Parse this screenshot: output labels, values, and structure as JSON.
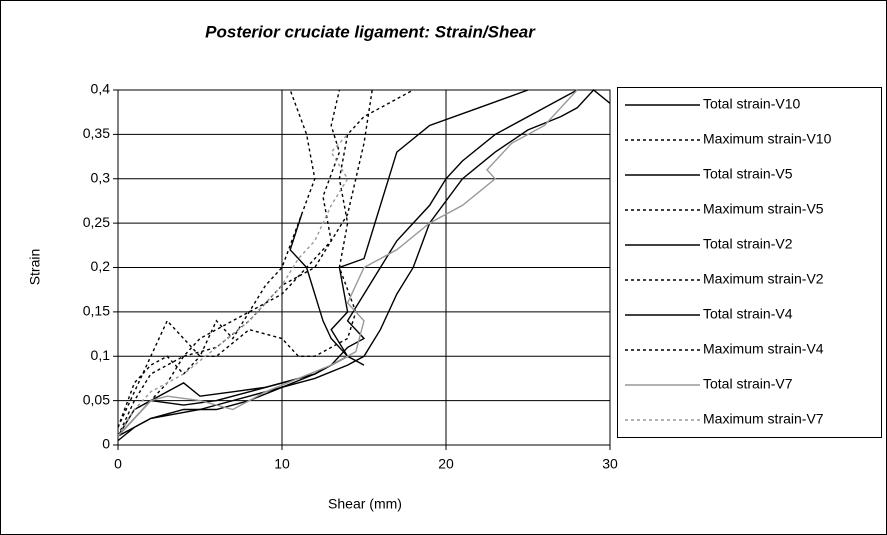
{
  "chart_data": {
    "type": "line",
    "title": "Posterior cruciate ligament: Strain/Shear",
    "xlabel": "Shear (mm)",
    "ylabel": "Strain",
    "xlim": [
      0,
      30
    ],
    "xticks": [
      0,
      10,
      20,
      30
    ],
    "ylim": [
      0,
      0.4
    ],
    "yticks": [
      0,
      {
        "value": 0.05,
        "label": "0,05"
      },
      {
        "value": 0.1,
        "label": "0,1"
      },
      {
        "value": 0.15,
        "label": "0,15"
      },
      {
        "value": 0.2,
        "label": "0,2"
      },
      {
        "value": 0.25,
        "label": "0,25"
      },
      {
        "value": 0.3,
        "label": "0,3"
      },
      {
        "value": 0.35,
        "label": "0,35"
      },
      {
        "value": 0.4,
        "label": "0,4"
      }
    ],
    "grid": true,
    "legend": "right",
    "series": [
      {
        "name": "Total strain-V10",
        "color": "#000000",
        "line_style": "solid",
        "x": [
          0,
          2,
          5,
          8,
          10,
          12,
          14,
          15,
          16,
          17,
          18,
          19,
          21,
          23,
          25,
          27,
          28,
          29,
          30
        ],
        "values": [
          0.01,
          0.03,
          0.04,
          0.055,
          0.065,
          0.075,
          0.09,
          0.1,
          0.13,
          0.17,
          0.2,
          0.25,
          0.3,
          0.33,
          0.355,
          0.37,
          0.38,
          0.4,
          0.385
        ]
      },
      {
        "name": "Maximum strain-V10",
        "color": "#000000",
        "line_style": "dotted",
        "x": [
          0,
          1,
          2,
          3,
          4,
          5,
          6,
          7,
          8,
          9,
          10,
          11,
          12,
          11.5,
          10.5
        ],
        "values": [
          0.02,
          0.06,
          0.1,
          0.14,
          0.12,
          0.1,
          0.14,
          0.12,
          0.15,
          0.18,
          0.2,
          0.25,
          0.3,
          0.35,
          0.4
        ]
      },
      {
        "name": "Total strain-V5",
        "color": "#000000",
        "line_style": "solid",
        "x": [
          0,
          1,
          2,
          3,
          4,
          5,
          7,
          9,
          10,
          12,
          14,
          15,
          14,
          13,
          12.5,
          11.5,
          10.5,
          11.2
        ],
        "values": [
          0.01,
          0.03,
          0.05,
          0.06,
          0.07,
          0.055,
          0.06,
          0.065,
          0.07,
          0.08,
          0.1,
          0.09,
          0.1,
          0.12,
          0.14,
          0.2,
          0.22,
          0.26
        ]
      },
      {
        "name": "Maximum strain-V5",
        "color": "#000000",
        "line_style": "dotted",
        "x": [
          0,
          1,
          2,
          3,
          4,
          5,
          6,
          8,
          10,
          11,
          12,
          14,
          14.5,
          13.5,
          14,
          13.5,
          14,
          15,
          16,
          18
        ],
        "values": [
          0.02,
          0.07,
          0.09,
          0.1,
          0.08,
          0.1,
          0.1,
          0.13,
          0.12,
          0.1,
          0.1,
          0.12,
          0.15,
          0.2,
          0.25,
          0.3,
          0.35,
          0.37,
          0.38,
          0.4
        ]
      },
      {
        "name": "Total strain-V2",
        "color": "#000000",
        "line_style": "solid",
        "x": [
          0,
          1,
          2,
          4,
          6,
          8,
          10,
          12,
          14,
          13,
          14,
          13.5,
          15,
          17,
          19,
          22,
          25
        ],
        "values": [
          0.01,
          0.04,
          0.05,
          0.045,
          0.05,
          0.06,
          0.07,
          0.08,
          0.1,
          0.13,
          0.15,
          0.2,
          0.21,
          0.33,
          0.36,
          0.38,
          0.4
        ]
      },
      {
        "name": "Maximum strain-V2",
        "color": "#000000",
        "line_style": "dotted",
        "x": [
          0,
          1,
          2,
          3,
          4,
          6,
          8,
          9,
          10,
          12,
          13,
          12.5,
          13.5,
          13,
          13.5
        ],
        "values": [
          0.01,
          0.05,
          0.08,
          0.09,
          0.1,
          0.11,
          0.14,
          0.16,
          0.18,
          0.2,
          0.23,
          0.28,
          0.33,
          0.36,
          0.4
        ]
      },
      {
        "name": "Total strain-V4",
        "color": "#000000",
        "line_style": "solid",
        "x": [
          0,
          1,
          2,
          4,
          6,
          8,
          10,
          12,
          13,
          14,
          15,
          14,
          15,
          16,
          17,
          18,
          19,
          20,
          21,
          23,
          26,
          28
        ],
        "values": [
          0.005,
          0.02,
          0.03,
          0.04,
          0.04,
          0.05,
          0.065,
          0.08,
          0.09,
          0.11,
          0.12,
          0.14,
          0.17,
          0.2,
          0.23,
          0.25,
          0.27,
          0.3,
          0.32,
          0.35,
          0.38,
          0.4
        ]
      },
      {
        "name": "Maximum strain-V4",
        "color": "#000000",
        "line_style": "dotted",
        "x": [
          0,
          1,
          2,
          3,
          4,
          5,
          6,
          8,
          10,
          11,
          12,
          13,
          14,
          14.5,
          15,
          15.5
        ],
        "values": [
          0.01,
          0.04,
          0.05,
          0.07,
          0.1,
          0.12,
          0.13,
          0.15,
          0.17,
          0.19,
          0.21,
          0.23,
          0.26,
          0.3,
          0.34,
          0.4
        ]
      },
      {
        "name": "Total strain-V7",
        "color": "#999999",
        "line_style": "solid",
        "x": [
          0,
          1,
          2,
          3,
          5,
          7,
          9,
          11,
          13,
          14.5,
          15,
          14,
          15,
          17,
          19,
          21,
          23,
          22.5,
          24,
          26,
          28
        ],
        "values": [
          0.01,
          0.03,
          0.05,
          0.055,
          0.05,
          0.04,
          0.06,
          0.075,
          0.09,
          0.105,
          0.14,
          0.16,
          0.2,
          0.22,
          0.25,
          0.27,
          0.3,
          0.31,
          0.34,
          0.36,
          0.4
        ]
      },
      {
        "name": "Maximum strain-V7",
        "color": "#999999",
        "line_style": "dotted",
        "x": [
          0,
          1,
          2,
          3,
          4,
          6,
          8,
          10,
          11,
          12,
          13,
          14,
          13,
          14
        ],
        "values": [
          0.01,
          0.04,
          0.06,
          0.07,
          0.08,
          0.11,
          0.14,
          0.18,
          0.21,
          0.23,
          0.27,
          0.3,
          0.33,
          0.35
        ]
      }
    ]
  }
}
